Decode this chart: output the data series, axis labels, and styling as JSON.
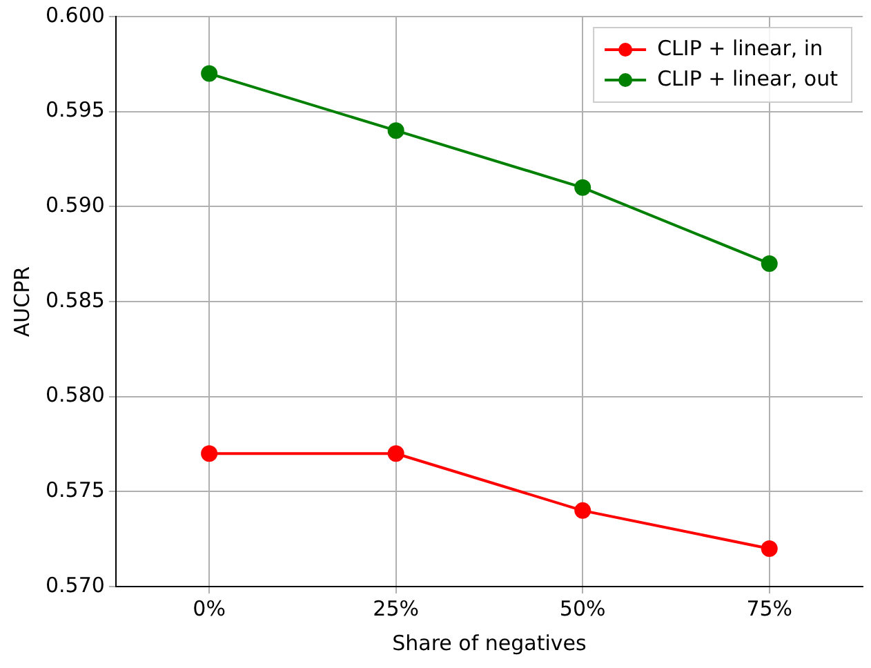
{
  "chart_data": {
    "type": "line",
    "xlabel": "Share of negatives",
    "ylabel": "AUCPR",
    "categories": [
      "0%",
      "25%",
      "50%",
      "75%"
    ],
    "series": [
      {
        "name": "CLIP + linear, in",
        "color": "#ff0000",
        "values": [
          0.577,
          0.577,
          0.574,
          0.572
        ]
      },
      {
        "name": "CLIP + linear, out",
        "color": "#008000",
        "values": [
          0.597,
          0.594,
          0.591,
          0.587
        ]
      }
    ],
    "ylim": [
      0.57,
      0.6
    ],
    "yticks": [
      {
        "value": 0.57,
        "label": "0.570"
      },
      {
        "value": 0.575,
        "label": "0.575"
      },
      {
        "value": 0.58,
        "label": "0.580"
      },
      {
        "value": 0.585,
        "label": "0.585"
      },
      {
        "value": 0.59,
        "label": "0.590"
      },
      {
        "value": 0.595,
        "label": "0.595"
      },
      {
        "value": 0.6,
        "label": "0.600"
      }
    ],
    "grid": true,
    "legend": "top right",
    "marker": "circle",
    "line_style": "solid"
  }
}
